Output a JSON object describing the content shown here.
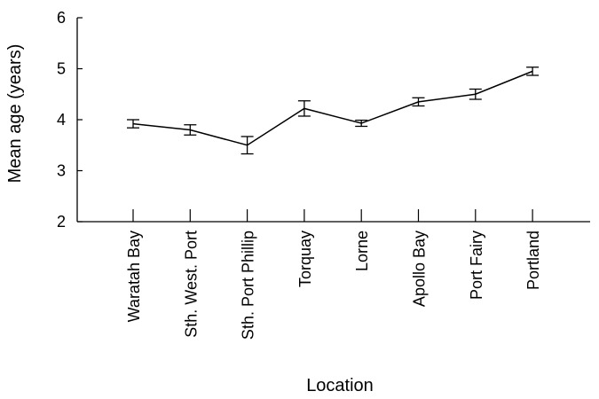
{
  "chart_data": {
    "type": "line",
    "title": "",
    "xlabel": "Location",
    "ylabel": "Mean age (years)",
    "ylim": [
      2,
      6
    ],
    "yticks": [
      "2",
      "3",
      "4",
      "5",
      "6"
    ],
    "grid": false,
    "categories": [
      "Waratah Bay",
      "Sth. West. Port",
      "Sth. Port Phillip",
      "Torquay",
      "Lorne",
      "Apollo Bay",
      "Port Fairy",
      "Portland"
    ],
    "series": [
      {
        "values": [
          3.92,
          3.8,
          3.5,
          4.22,
          3.93,
          4.35,
          4.5,
          4.95
        ],
        "error": [
          0.08,
          0.1,
          0.17,
          0.15,
          0.06,
          0.08,
          0.1,
          0.08
        ],
        "color": "#000000"
      }
    ]
  }
}
